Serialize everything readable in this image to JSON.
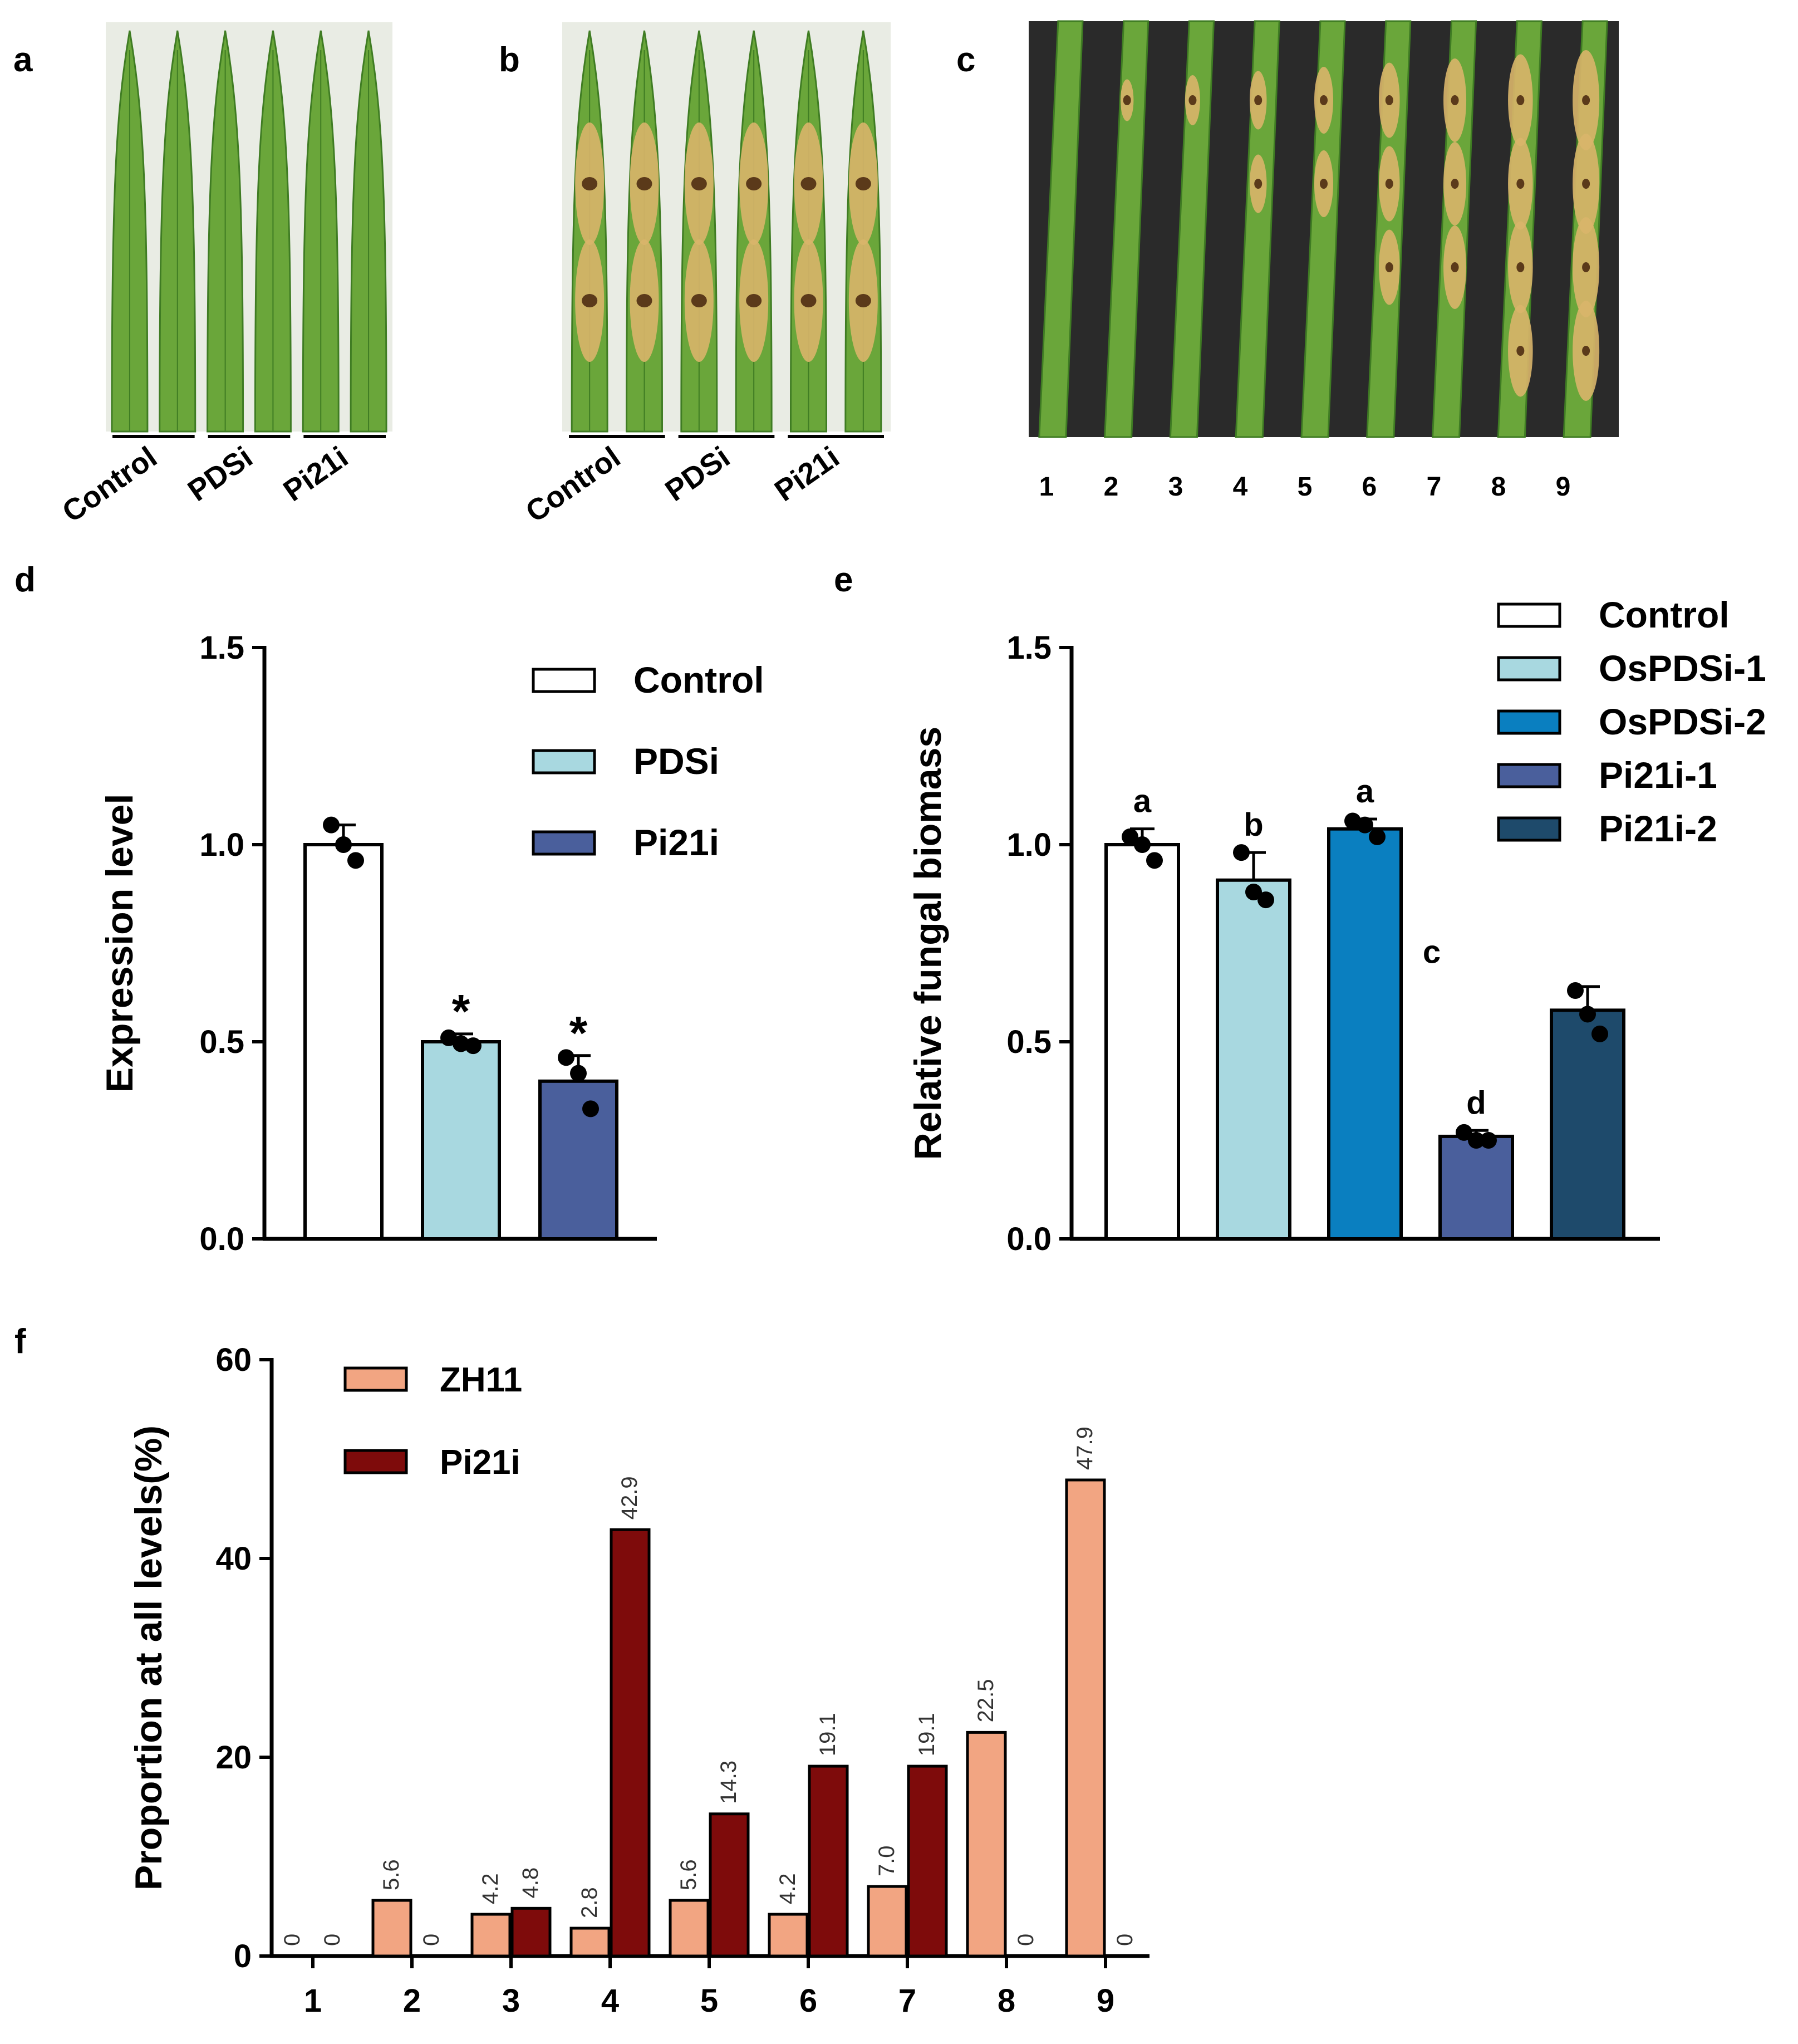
{
  "panel_labels": {
    "a": "a",
    "b": "b",
    "c": "c",
    "d": "d",
    "e": "e",
    "f": "f"
  },
  "colors": {
    "leaf_green": "#6aa63a",
    "leaf_dark": "#3f7c23",
    "lesion_tan": "#d9b56a",
    "lesion_brown": "#5b3a1a",
    "control": "#ffffff",
    "pdsi": "#a8d8e0",
    "ospdsi2": "#0a7fc0",
    "pi21i1": "#4a5f9c",
    "pi21i2": "#1e4a6b",
    "zh11": "#f2a582",
    "pi21i_f": "#7e0b0b"
  },
  "panel_a": {
    "groups": [
      "Control",
      "PDSi",
      "Pi21i"
    ],
    "leaf_count": 6
  },
  "panel_b": {
    "groups": [
      "Control",
      "PDSi",
      "Pi21i"
    ],
    "leaf_count": 6
  },
  "panel_c": {
    "scale_labels": [
      "1",
      "2",
      "3",
      "4",
      "5",
      "6",
      "7",
      "8",
      "9"
    ]
  },
  "chart_data": [
    {
      "panel": "d",
      "type": "bar",
      "title": "",
      "xlabel": "",
      "ylabel": "Expression level",
      "ylim": [
        0,
        1.5
      ],
      "yticks": [
        "0.0",
        "0.5",
        "1.0",
        "1.5"
      ],
      "categories": [
        "Control",
        "PDSi",
        "Pi21i"
      ],
      "values": [
        1.0,
        0.5,
        0.4
      ],
      "errors": [
        0.05,
        0.02,
        0.065
      ],
      "points": [
        [
          1.05,
          1.0,
          0.96
        ],
        [
          0.51,
          0.495,
          0.49
        ],
        [
          0.46,
          0.42,
          0.33
        ]
      ],
      "annotations": [
        "",
        "*",
        "*"
      ],
      "legend": [
        "Control",
        "PDSi",
        "Pi21i"
      ],
      "legend_position": "top-right"
    },
    {
      "panel": "e",
      "type": "bar",
      "title": "",
      "xlabel": "",
      "ylabel": "Relative fungal biomass",
      "ylim": [
        0,
        1.5
      ],
      "yticks": [
        "0.0",
        "0.5",
        "1.0",
        "1.5"
      ],
      "categories": [
        "Control",
        "OsPDSi-1",
        "OsPDSi-2",
        "Pi21i-1",
        "Pi21i-2"
      ],
      "values": [
        1.0,
        0.91,
        1.04,
        0.26,
        0.58
      ],
      "errors": [
        0.04,
        0.07,
        0.025,
        0.015,
        0.06
      ],
      "points": [
        [
          1.02,
          1.0,
          0.96
        ],
        [
          0.98,
          0.88,
          0.86
        ],
        [
          1.06,
          1.05,
          1.02
        ],
        [
          0.27,
          0.25,
          0.25
        ],
        [
          0.63,
          0.57,
          0.52
        ]
      ],
      "annotations": [
        "a",
        "b",
        "a",
        "d",
        ""
      ],
      "extra_annotation": "c",
      "legend": [
        "Control",
        "OsPDSi-1",
        "OsPDSi-2",
        "Pi21i-1",
        "Pi21i-2"
      ],
      "legend_position": "top-right"
    },
    {
      "panel": "f",
      "type": "bar",
      "title": "",
      "xlabel": "",
      "ylabel": "Proportion at all levels(%)",
      "ylim": [
        0,
        60
      ],
      "yticks": [
        "0",
        "20",
        "40",
        "60"
      ],
      "categories": [
        "1",
        "2",
        "3",
        "4",
        "5",
        "6",
        "7",
        "8",
        "9"
      ],
      "series": [
        {
          "name": "ZH11",
          "values": [
            0,
            5.6,
            4.2,
            2.8,
            5.6,
            4.2,
            7.0,
            22.5,
            47.9
          ],
          "labels": [
            "0",
            "5.6",
            "4.2",
            "2.8",
            "5.6",
            "4.2",
            "7.0",
            "22.5",
            "47.9"
          ]
        },
        {
          "name": "Pi21i",
          "values": [
            0,
            0,
            4.8,
            42.9,
            14.3,
            19.1,
            19.1,
            0,
            0
          ],
          "labels": [
            "0",
            "0",
            "4.8",
            "42.9",
            "14.3",
            "19.1",
            "19.1",
            "0",
            "0"
          ]
        }
      ],
      "legend_position": "top-left"
    }
  ]
}
